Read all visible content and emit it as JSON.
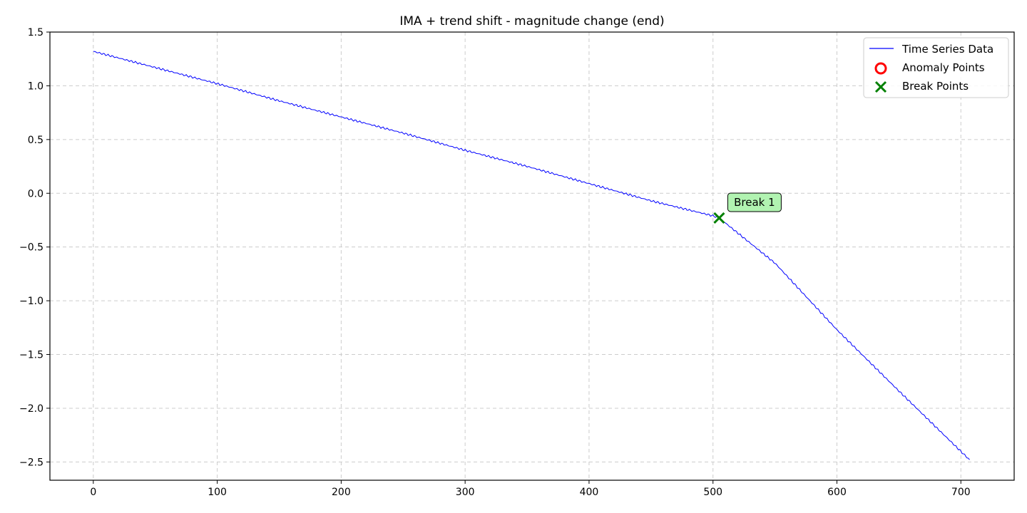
{
  "chart_data": {
    "type": "line",
    "title": "IMA + trend shift - magnitude change (end)",
    "xlabel": "",
    "ylabel": "",
    "xlim": [
      -35,
      743
    ],
    "ylim": [
      -2.67,
      1.5
    ],
    "x_ticks": [
      0,
      100,
      200,
      300,
      400,
      500,
      600,
      700
    ],
    "y_ticks": [
      1.5,
      1.0,
      0.5,
      0.0,
      -0.5,
      -1.0,
      -1.5,
      -2.0,
      -2.5
    ],
    "x_tick_labels": [
      "0",
      "100",
      "200",
      "300",
      "400",
      "500",
      "600",
      "700"
    ],
    "y_tick_labels": [
      "1.5",
      "1.0",
      "0.5",
      "0.0",
      "−0.5",
      "−1.0",
      "−1.5",
      "−2.0",
      "−2.5"
    ],
    "grid": true,
    "legend_position": "top-right",
    "series": [
      {
        "name": "Time Series Data",
        "color": "#0000ff",
        "x": [
          0,
          50,
          100,
          150,
          200,
          250,
          300,
          350,
          400,
          450,
          500,
          505,
          550,
          600,
          650,
          707
        ],
        "values": [
          1.32,
          1.17,
          1.02,
          0.86,
          0.71,
          0.56,
          0.4,
          0.25,
          0.09,
          -0.07,
          -0.21,
          -0.23,
          -0.65,
          -1.27,
          -1.84,
          -2.48
        ]
      }
    ],
    "anomalies": {
      "name": "Anomaly Points",
      "color": "#ff0000",
      "points": []
    },
    "breaks": {
      "name": "Break Points",
      "color": "#008000",
      "points": [
        {
          "x": 505,
          "y": -0.23,
          "label": "Break 1"
        }
      ]
    }
  }
}
